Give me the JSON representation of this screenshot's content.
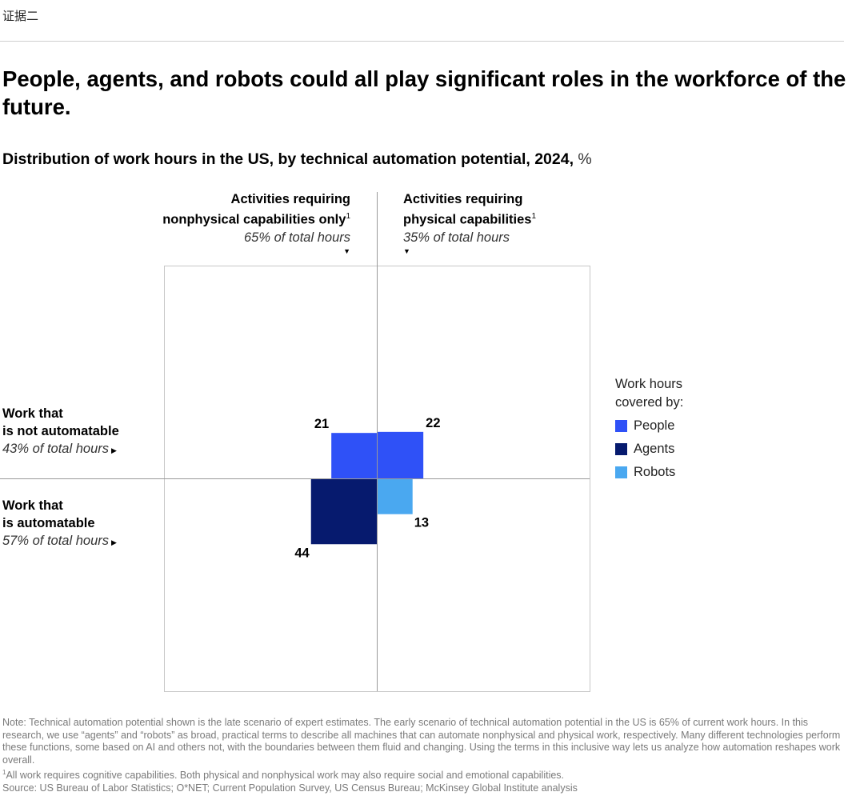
{
  "page": {
    "label": "证据二",
    "headline": "People, agents, and robots could all play significant roles in the workforce of the future.",
    "subtitle": "Distribution of work hours in the US, by technical automation potential, 2024,",
    "subtitle_unit": "%"
  },
  "chart_data": {
    "type": "quadrant-bar",
    "title": "Distribution of work hours in the US, by technical automation potential, 2024, %",
    "columns": [
      {
        "label_line1": "Activities requiring",
        "label_line2": "nonphysical capabilities only",
        "footnote": "1",
        "share": "65% of total hours",
        "share_value": 65
      },
      {
        "label_line1": "Activities requiring",
        "label_line2": "physical capabilities",
        "footnote": "1",
        "share": "35% of total hours",
        "share_value": 35
      }
    ],
    "rows": [
      {
        "label_line1": "Work that",
        "label_line2": "is not automatable",
        "share": "43% of total hours",
        "share_value": 43
      },
      {
        "label_line1": "Work that",
        "label_line2": "is automatable",
        "share": "57% of total hours",
        "share_value": 57
      }
    ],
    "cells": [
      {
        "row": 0,
        "col": 0,
        "value": 21,
        "label": "21",
        "covered_by": "People"
      },
      {
        "row": 0,
        "col": 1,
        "value": 22,
        "label": "22",
        "covered_by": "People"
      },
      {
        "row": 1,
        "col": 0,
        "value": 44,
        "label": "44",
        "covered_by": "Agents"
      },
      {
        "row": 1,
        "col": 1,
        "value": 13,
        "label": "13",
        "covered_by": "Robots"
      }
    ],
    "legend": {
      "title_line1": "Work hours",
      "title_line2": "covered by:",
      "items": [
        {
          "name": "People",
          "color": "#2f51f7"
        },
        {
          "name": "Agents",
          "color": "#061a6e"
        },
        {
          "name": "Robots",
          "color": "#4aa8f0"
        }
      ]
    }
  },
  "notes": {
    "note": "Note: Technical automation potential shown is the late scenario of expert estimates. The early scenario of technical automation potential in the US is 65% of current work hours. In this research, we use “agents” and “robots” as broad, practical terms to describe all machines that can automate nonphysical and physical work, respectively. Many different technologies perform these functions, some based on AI and others not, with the boundaries between them fluid and changing. Using the terms in this inclusive way lets us analyze how automation reshapes work overall.",
    "footnote_marker": "1",
    "footnote": "All work requires cognitive capabilities. Both physical and nonphysical work may also require social and emotional capabilities.",
    "source": "Source: US Bureau of Labor Statistics; O*NET; Current Population Survey, US Census Bureau; McKinsey Global Institute analysis"
  }
}
